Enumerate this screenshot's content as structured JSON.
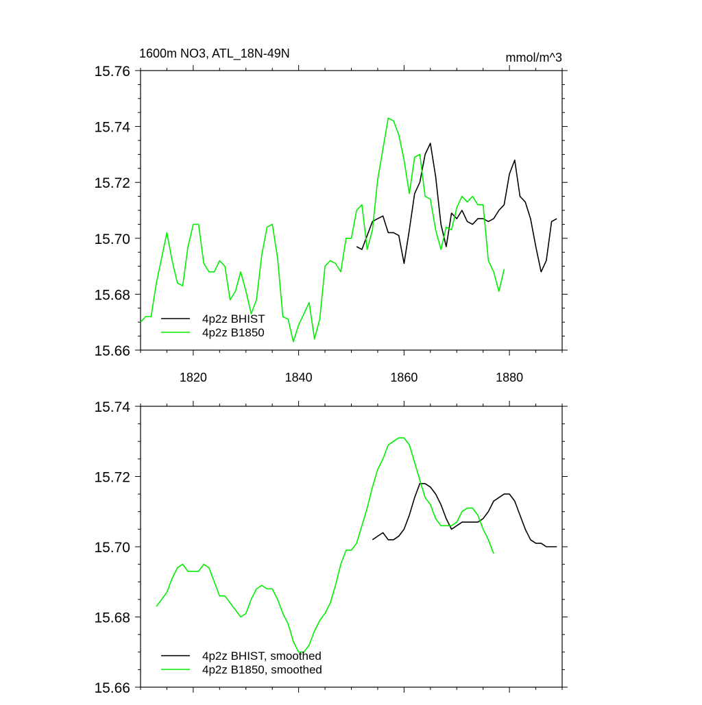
{
  "chart_data": [
    {
      "type": "line",
      "title": "1600m NO3, ATL_18N-49N",
      "units": "mmol/m^3",
      "xlabel": "",
      "ylabel": "",
      "xlim": [
        1810,
        1890
      ],
      "ylim": [
        15.66,
        15.76
      ],
      "xticks": [
        1820,
        1840,
        1860,
        1880
      ],
      "yticks": [
        15.66,
        15.68,
        15.7,
        15.72,
        15.74,
        15.76
      ],
      "ytick_labels": [
        "15.66",
        "15.68",
        "15.70",
        "15.72",
        "15.74",
        "15.76"
      ],
      "xtick_labels": [
        "1820",
        "1840",
        "1860",
        "1880"
      ],
      "legend_position": "bottom-left",
      "series": [
        {
          "name": "4p2z BHIST",
          "color": "#000000",
          "x": [
            1851,
            1852,
            1853,
            1854,
            1855,
            1856,
            1857,
            1858,
            1859,
            1860,
            1861,
            1862,
            1863,
            1864,
            1865,
            1866,
            1867,
            1868,
            1869,
            1870,
            1871,
            1872,
            1873,
            1874,
            1875,
            1876,
            1877,
            1878,
            1879,
            1880,
            1881,
            1882,
            1883,
            1884,
            1885,
            1886,
            1887,
            1888,
            1889
          ],
          "values": [
            15.697,
            15.696,
            15.701,
            15.706,
            15.707,
            15.708,
            15.702,
            15.702,
            15.701,
            15.691,
            15.703,
            15.716,
            15.72,
            15.73,
            15.734,
            15.722,
            15.705,
            15.697,
            15.709,
            15.707,
            15.71,
            15.706,
            15.705,
            15.707,
            15.707,
            15.706,
            15.707,
            15.71,
            15.712,
            15.723,
            15.728,
            15.715,
            15.713,
            15.707,
            15.697,
            15.688,
            15.692,
            15.706,
            15.707
          ]
        },
        {
          "name": "4p2z B1850",
          "color": "#00ee00",
          "x": [
            1810,
            1811,
            1812,
            1813,
            1814,
            1815,
            1816,
            1817,
            1818,
            1819,
            1820,
            1821,
            1822,
            1823,
            1824,
            1825,
            1826,
            1827,
            1828,
            1829,
            1830,
            1831,
            1832,
            1833,
            1834,
            1835,
            1836,
            1837,
            1838,
            1839,
            1840,
            1841,
            1842,
            1843,
            1844,
            1845,
            1846,
            1847,
            1848,
            1849,
            1850,
            1851,
            1852,
            1853,
            1854,
            1855,
            1856,
            1857,
            1858,
            1859,
            1860,
            1861,
            1862,
            1863,
            1864,
            1865,
            1866,
            1867,
            1868,
            1869,
            1870,
            1871,
            1872,
            1873,
            1874,
            1875,
            1876,
            1877,
            1878,
            1879
          ],
          "values": [
            15.67,
            15.672,
            15.672,
            15.684,
            15.693,
            15.702,
            15.692,
            15.684,
            15.683,
            15.697,
            15.705,
            15.705,
            15.691,
            15.688,
            15.688,
            15.692,
            15.69,
            15.678,
            15.681,
            15.688,
            15.681,
            15.673,
            15.678,
            15.694,
            15.704,
            15.705,
            15.693,
            15.672,
            15.671,
            15.663,
            15.669,
            15.673,
            15.677,
            15.664,
            15.671,
            15.69,
            15.692,
            15.691,
            15.688,
            15.7,
            15.7,
            15.71,
            15.712,
            15.696,
            15.703,
            15.721,
            15.732,
            15.743,
            15.742,
            15.737,
            15.728,
            15.716,
            15.729,
            15.73,
            15.715,
            15.714,
            15.703,
            15.696,
            15.704,
            15.703,
            15.711,
            15.715,
            15.713,
            15.715,
            15.712,
            15.712,
            15.692,
            15.688,
            15.681,
            15.689
          ]
        }
      ]
    },
    {
      "type": "line",
      "title": "",
      "xlabel": "",
      "ylabel": "",
      "xlim": [
        1810,
        1890
      ],
      "ylim": [
        15.66,
        15.74
      ],
      "xticks": [
        1820,
        1840,
        1860,
        1880
      ],
      "yticks": [
        15.66,
        15.68,
        15.7,
        15.72,
        15.74
      ],
      "ytick_labels": [
        "15.66",
        "15.68",
        "15.70",
        "15.72",
        "15.74"
      ],
      "legend_position": "bottom-left",
      "series": [
        {
          "name": "4p2z BHIST, smoothed",
          "color": "#000000",
          "x": [
            1854,
            1855,
            1856,
            1857,
            1858,
            1859,
            1860,
            1861,
            1862,
            1863,
            1864,
            1865,
            1866,
            1867,
            1868,
            1869,
            1870,
            1871,
            1872,
            1873,
            1874,
            1875,
            1876,
            1877,
            1878,
            1879,
            1880,
            1881,
            1882,
            1883,
            1884,
            1885,
            1886,
            1887,
            1888,
            1889
          ],
          "values": [
            15.702,
            15.703,
            15.704,
            15.702,
            15.702,
            15.703,
            15.705,
            15.709,
            15.714,
            15.718,
            15.718,
            15.717,
            15.715,
            15.712,
            15.708,
            15.705,
            15.706,
            15.707,
            15.707,
            15.707,
            15.707,
            15.708,
            15.71,
            15.713,
            15.714,
            15.715,
            15.715,
            15.713,
            15.709,
            15.705,
            15.702,
            15.701,
            15.701,
            15.7,
            15.7,
            15.7
          ]
        },
        {
          "name": "4p2z B1850, smoothed",
          "color": "#00ee00",
          "x": [
            1813,
            1814,
            1815,
            1816,
            1817,
            1818,
            1819,
            1820,
            1821,
            1822,
            1823,
            1824,
            1825,
            1826,
            1827,
            1828,
            1829,
            1830,
            1831,
            1832,
            1833,
            1834,
            1835,
            1836,
            1837,
            1838,
            1839,
            1840,
            1841,
            1842,
            1843,
            1844,
            1845,
            1846,
            1847,
            1848,
            1849,
            1850,
            1851,
            1852,
            1853,
            1854,
            1855,
            1856,
            1857,
            1858,
            1859,
            1860,
            1861,
            1862,
            1863,
            1864,
            1865,
            1866,
            1867,
            1868,
            1869,
            1870,
            1871,
            1872,
            1873,
            1874,
            1875,
            1876,
            1877
          ],
          "values": [
            15.683,
            15.685,
            15.687,
            15.691,
            15.694,
            15.695,
            15.693,
            15.693,
            15.693,
            15.695,
            15.694,
            15.69,
            15.686,
            15.686,
            15.684,
            15.682,
            15.68,
            15.681,
            15.685,
            15.688,
            15.689,
            15.688,
            15.688,
            15.685,
            15.681,
            15.678,
            15.673,
            15.67,
            15.67,
            15.672,
            15.676,
            15.679,
            15.681,
            15.684,
            15.689,
            15.695,
            15.699,
            15.699,
            15.701,
            15.706,
            15.711,
            15.717,
            15.722,
            15.725,
            15.729,
            15.73,
            15.731,
            15.731,
            15.729,
            15.724,
            15.719,
            15.714,
            15.712,
            15.708,
            15.706,
            15.706,
            15.706,
            15.707,
            15.71,
            15.711,
            15.711,
            15.709,
            15.705,
            15.702,
            15.698
          ]
        }
      ]
    }
  ]
}
